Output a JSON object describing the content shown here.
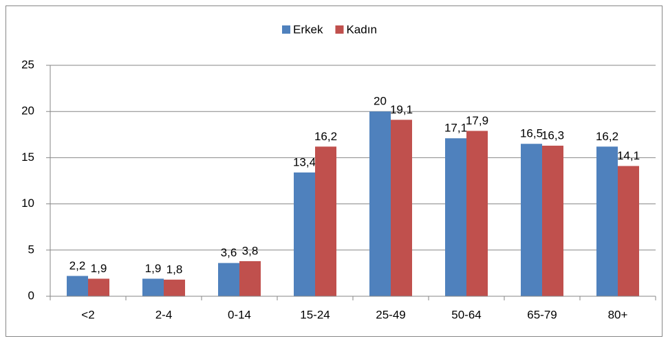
{
  "chart_data": {
    "type": "bar",
    "categories": [
      "<2",
      "2-4",
      "0-14",
      "15-24",
      "25-49",
      "50-64",
      "65-79",
      "80+"
    ],
    "series": [
      {
        "name": "Erkek",
        "color": "#4f81bd",
        "values": [
          2.2,
          1.9,
          3.6,
          13.4,
          20,
          17.1,
          16.5,
          16.2
        ],
        "value_labels": [
          "2,2",
          "1,9",
          "3,6",
          "13,4",
          "20",
          "17,1",
          "16,5",
          "16,2"
        ]
      },
      {
        "name": "Kadın",
        "color": "#c0504d",
        "values": [
          1.9,
          1.8,
          3.8,
          16.2,
          19.1,
          17.9,
          16.3,
          14.1
        ],
        "value_labels": [
          "1,9",
          "1,8",
          "3,8",
          "16,2",
          "19,1",
          "17,9",
          "16,3",
          "14,1"
        ]
      }
    ],
    "ylim": [
      0,
      25
    ],
    "yticks": [
      0,
      5,
      10,
      15,
      20,
      25
    ],
    "grid": true,
    "legend": "top"
  }
}
